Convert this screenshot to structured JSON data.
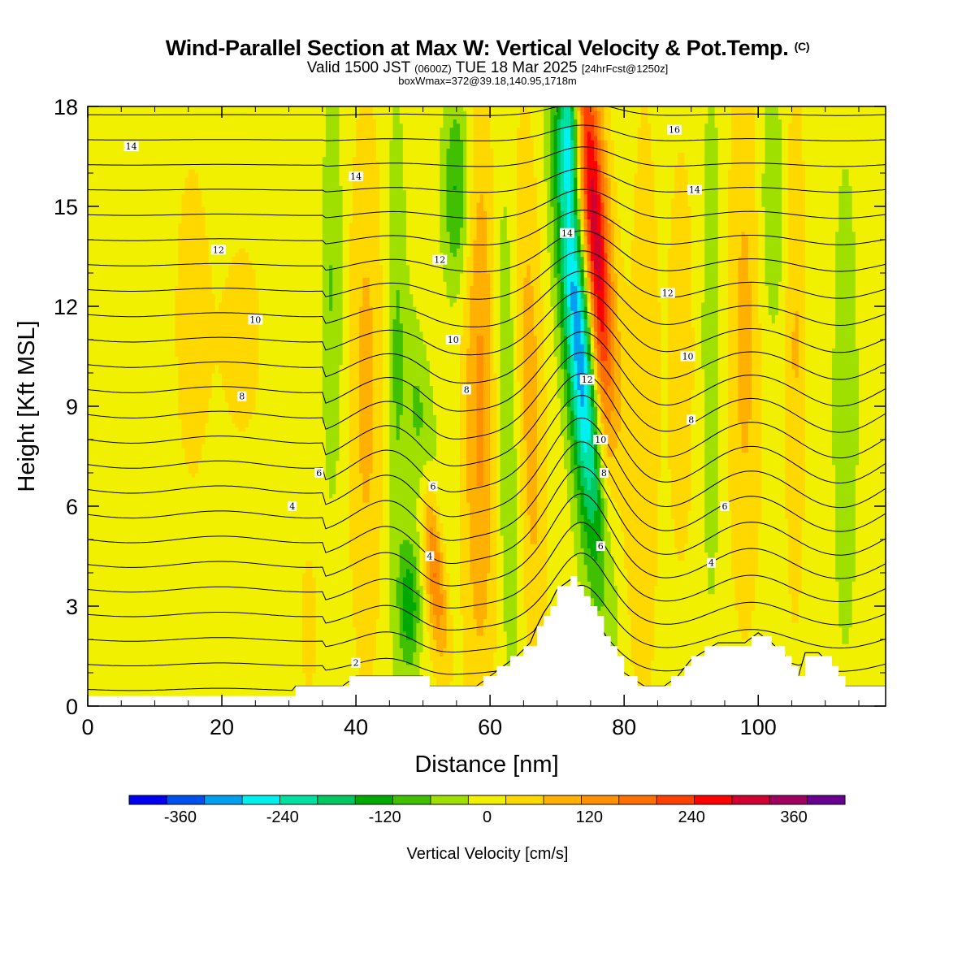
{
  "title": {
    "main": "Wind-Parallel Section at Max W: Vertical Velocity & Pot.Temp.",
    "copyright": "(C)",
    "valid_prefix": "Valid 1500 JST",
    "valid_utc": "(0600Z)",
    "valid_date": "TUE 18 Mar 2025",
    "forecast": "[24hrFcst@1250z]",
    "box_info": "boxWmax=372@39.18,140.95,1718m"
  },
  "chart_data": {
    "type": "heatmap",
    "xlabel": "Distance [nm]",
    "ylabel": "Height [Kft MSL]",
    "xlim": [
      0,
      119
    ],
    "ylim": [
      0,
      18
    ],
    "x_ticks": [
      0,
      20,
      40,
      60,
      80,
      100
    ],
    "y_ticks": [
      0,
      3,
      6,
      9,
      12,
      15,
      18
    ],
    "colorbar": {
      "label": "Vertical Velocity [cm/s]",
      "ticks": [
        -360,
        -240,
        -120,
        0,
        120,
        240,
        360
      ],
      "range": [
        -420,
        420
      ],
      "colors": [
        "#0000f0",
        "#0050f0",
        "#00a0f0",
        "#00f0f0",
        "#00e0a0",
        "#00c860",
        "#00a800",
        "#40c000",
        "#a0e000",
        "#f0f000",
        "#ffd800",
        "#ffb000",
        "#ff9000",
        "#ff7000",
        "#ff4000",
        "#ff0000",
        "#d00030",
        "#a00060",
        "#6a0090"
      ]
    },
    "terrain": [
      [
        0,
        0.3
      ],
      [
        30,
        0.3
      ],
      [
        31,
        0.6
      ],
      [
        38,
        0.6
      ],
      [
        40,
        0.9
      ],
      [
        50,
        0.9
      ],
      [
        51,
        0.6
      ],
      [
        55,
        0.6
      ],
      [
        57,
        0.6
      ],
      [
        58,
        0.6
      ],
      [
        60,
        0.9
      ],
      [
        62,
        1.2
      ],
      [
        64,
        1.5
      ],
      [
        66,
        1.9
      ],
      [
        67,
        2.4
      ],
      [
        68,
        2.8
      ],
      [
        69,
        3.1
      ],
      [
        70,
        3.5
      ],
      [
        72,
        3.8
      ],
      [
        73,
        3.5
      ],
      [
        74,
        3.2
      ],
      [
        75,
        3.0
      ],
      [
        76,
        2.6
      ],
      [
        77,
        2.2
      ],
      [
        78,
        1.8
      ],
      [
        79,
        1.4
      ],
      [
        80,
        1.0
      ],
      [
        83,
        0.6
      ],
      [
        86,
        0.6
      ],
      [
        88,
        0.9
      ],
      [
        90,
        1.4
      ],
      [
        94,
        1.9
      ],
      [
        98,
        1.9
      ],
      [
        100,
        2.2
      ],
      [
        102,
        1.9
      ],
      [
        104,
        1.5
      ],
      [
        106,
        0.9
      ],
      [
        107,
        1.6
      ],
      [
        109,
        1.6
      ],
      [
        110,
        1.4
      ],
      [
        112,
        0.9
      ],
      [
        113,
        0.6
      ],
      [
        119,
        0.6
      ]
    ],
    "w_features": [
      {
        "x": 73.5,
        "z": 11.0,
        "dx": 2.4,
        "dz": 6.5,
        "w": -360,
        "tilt": -0.38
      },
      {
        "x": 76.0,
        "z": 13.0,
        "dx": 2.4,
        "dz": 7.5,
        "w": 372,
        "tilt": -0.36
      },
      {
        "x": 72.0,
        "z": 17.5,
        "dx": 1.5,
        "dz": 2.0,
        "w": -200,
        "tilt": 0
      },
      {
        "x": 78.5,
        "z": 8.0,
        "dx": 1.6,
        "dz": 6.0,
        "w": -120,
        "tilt": -0.2
      },
      {
        "x": 51.5,
        "z": 4.5,
        "dx": 1.5,
        "dz": 3.0,
        "w": 200,
        "tilt": -0.4
      },
      {
        "x": 50.0,
        "z": 7.5,
        "dx": 2.0,
        "dz": 3.5,
        "w": -110,
        "tilt": -0.4
      },
      {
        "x": 48.0,
        "z": 3.0,
        "dx": 1.5,
        "dz": 2.0,
        "w": -140,
        "tilt": 0
      },
      {
        "x": 55.0,
        "z": 15.5,
        "dx": 2.0,
        "dz": 3.0,
        "w": -120,
        "tilt": 0
      },
      {
        "x": 58.5,
        "z": 9.0,
        "dx": 2.5,
        "dz": 9.0,
        "w": 120,
        "tilt": 0
      },
      {
        "x": 62.5,
        "z": 8.5,
        "dx": 1.8,
        "dz": 8.0,
        "w": -70,
        "tilt": -0.1
      },
      {
        "x": 66.0,
        "z": 9.0,
        "dx": 2.0,
        "dz": 8.0,
        "w": 90,
        "tilt": -0.1
      },
      {
        "x": 41.5,
        "z": 9.5,
        "dx": 2.5,
        "dz": 8.0,
        "w": 80,
        "tilt": 0
      },
      {
        "x": 36.5,
        "z": 12.5,
        "dx": 1.5,
        "dz": 6.0,
        "w": -70,
        "tilt": 0
      },
      {
        "x": 46.0,
        "z": 10.0,
        "dx": 1.5,
        "dz": 8.0,
        "w": -70,
        "tilt": 0
      },
      {
        "x": 15.5,
        "z": 11.5,
        "dx": 3.0,
        "dz": 6.0,
        "w": 40,
        "tilt": 0
      },
      {
        "x": 23.0,
        "z": 11.0,
        "dx": 4.0,
        "dz": 4.0,
        "w": 35,
        "tilt": 0
      },
      {
        "x": 33.0,
        "z": 2.5,
        "dx": 1.5,
        "dz": 2.5,
        "w": 40,
        "tilt": 0
      },
      {
        "x": 83.0,
        "z": 9.0,
        "dx": 2.0,
        "dz": 9.0,
        "w": 60,
        "tilt": 0
      },
      {
        "x": 88.5,
        "z": 10.5,
        "dx": 2.5,
        "dz": 8.0,
        "w": 40,
        "tilt": 0
      },
      {
        "x": 93.0,
        "z": 11.0,
        "dx": 1.5,
        "dz": 8.0,
        "w": -60,
        "tilt": 0
      },
      {
        "x": 98.0,
        "z": 11.0,
        "dx": 2.5,
        "dz": 8.0,
        "w": 80,
        "tilt": 0
      },
      {
        "x": 102.0,
        "z": 15.0,
        "dx": 2.0,
        "dz": 4.0,
        "w": -60,
        "tilt": 0
      },
      {
        "x": 105.5,
        "z": 11.0,
        "dx": 1.5,
        "dz": 8.0,
        "w": 70,
        "tilt": 0
      },
      {
        "x": 113.0,
        "z": 9.0,
        "dx": 2.0,
        "dz": 8.0,
        "w": -50,
        "tilt": 0
      },
      {
        "x": 6.0,
        "z": 3.0,
        "dx": 6.0,
        "dz": 4.0,
        "w": -15,
        "tilt": 0
      }
    ],
    "theta_levels": [
      2,
      3,
      4,
      5,
      6,
      7,
      8,
      9,
      10,
      11,
      12,
      13,
      14,
      15,
      16
    ],
    "contour_labels": [
      {
        "x": 6.5,
        "z": 16.8,
        "text": "14"
      },
      {
        "x": 19.5,
        "z": 13.7,
        "text": "12"
      },
      {
        "x": 25.0,
        "z": 11.6,
        "text": "10"
      },
      {
        "x": 23.0,
        "z": 9.3,
        "text": "8"
      },
      {
        "x": 34.5,
        "z": 7.0,
        "text": "6"
      },
      {
        "x": 30.5,
        "z": 6.0,
        "text": "4"
      },
      {
        "x": 40.0,
        "z": 1.3,
        "text": "2"
      },
      {
        "x": 40.0,
        "z": 15.9,
        "text": "14"
      },
      {
        "x": 52.5,
        "z": 13.4,
        "text": "12"
      },
      {
        "x": 54.5,
        "z": 11.0,
        "text": "10"
      },
      {
        "x": 56.5,
        "z": 9.5,
        "text": "8"
      },
      {
        "x": 51.5,
        "z": 6.6,
        "text": "6"
      },
      {
        "x": 51.0,
        "z": 4.5,
        "text": "4"
      },
      {
        "x": 71.5,
        "z": 14.2,
        "text": "14"
      },
      {
        "x": 74.5,
        "z": 9.8,
        "text": "12"
      },
      {
        "x": 76.5,
        "z": 8.0,
        "text": "10"
      },
      {
        "x": 77.0,
        "z": 7.0,
        "text": "8"
      },
      {
        "x": 76.5,
        "z": 4.8,
        "text": "6"
      },
      {
        "x": 87.5,
        "z": 17.3,
        "text": "16"
      },
      {
        "x": 90.5,
        "z": 15.5,
        "text": "14"
      },
      {
        "x": 86.5,
        "z": 12.4,
        "text": "12"
      },
      {
        "x": 89.5,
        "z": 10.5,
        "text": "10"
      },
      {
        "x": 90.0,
        "z": 8.6,
        "text": "8"
      },
      {
        "x": 95.0,
        "z": 6.0,
        "text": "6"
      },
      {
        "x": 93.0,
        "z": 4.3,
        "text": "4"
      }
    ]
  }
}
